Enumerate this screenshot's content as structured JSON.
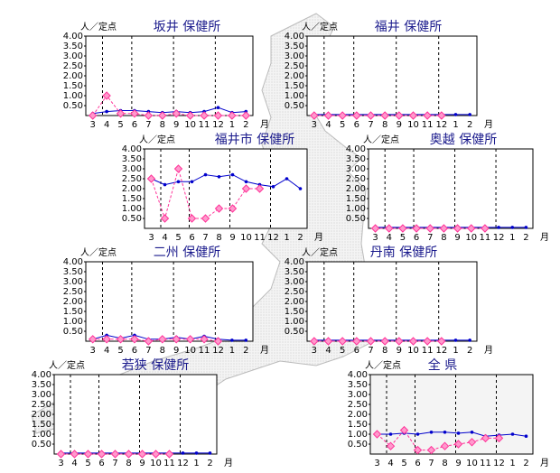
{
  "chart_data": [
    {
      "type": "line",
      "title": "坂井 保健所",
      "y_label": "人／定点",
      "x_unit": "月",
      "categories": [
        "3",
        "4",
        "5",
        "6",
        "7",
        "8",
        "9",
        "10",
        "11",
        "12",
        "1",
        "2"
      ],
      "series": [
        {
          "color": "#0000cc",
          "values": [
            0.1,
            0.2,
            0.25,
            0.25,
            0.2,
            0.15,
            0.2,
            0.15,
            0.2,
            0.4,
            0.15,
            0.2
          ]
        },
        {
          "color": "#ff3399",
          "values": [
            0,
            1.0,
            0.1,
            0.1,
            0,
            0,
            0.1,
            0,
            0,
            0,
            0,
            0
          ]
        }
      ],
      "ylim": [
        0,
        4
      ],
      "yticks": [
        {
          "value": 0.5,
          "label": "0.50"
        },
        {
          "value": 1,
          "label": "1.00"
        },
        {
          "value": 1.5,
          "label": "1.50"
        },
        {
          "value": 2,
          "label": "2.00"
        },
        {
          "value": 2.5,
          "label": "2.50"
        },
        {
          "value": 3,
          "label": "3.00"
        },
        {
          "value": 3.5,
          "label": "3.50"
        },
        {
          "value": 4,
          "label": "4.00"
        }
      ]
    },
    {
      "type": "line",
      "title": "福井 保健所",
      "y_label": "人／定点",
      "x_unit": "月",
      "categories": [
        "3",
        "4",
        "5",
        "6",
        "7",
        "8",
        "9",
        "10",
        "11",
        "12",
        "1",
        "2"
      ],
      "series": [
        {
          "color": "#0000cc",
          "values": [
            0.05,
            0.05,
            0.05,
            0.05,
            0.05,
            0.05,
            0.05,
            0.05,
            0.05,
            0.05,
            0.05,
            0.05
          ]
        },
        {
          "color": "#ff3399",
          "values": [
            0,
            0,
            0,
            0,
            0,
            0,
            0,
            0,
            0,
            0,
            null,
            null
          ]
        }
      ],
      "ylim": [
        0,
        4
      ],
      "yticks": [
        {
          "value": 0.5,
          "label": "0.50"
        },
        {
          "value": 1,
          "label": "1.00"
        },
        {
          "value": 1.5,
          "label": "1.50"
        },
        {
          "value": 2,
          "label": "2.00"
        },
        {
          "value": 2.5,
          "label": "2.50"
        },
        {
          "value": 3,
          "label": "3.00"
        },
        {
          "value": 3.5,
          "label": "3.50"
        },
        {
          "value": 4,
          "label": "4.00"
        }
      ]
    },
    {
      "type": "line",
      "title": "福井市 保健所",
      "y_label": "人／定点",
      "x_unit": "月",
      "categories": [
        "3",
        "4",
        "5",
        "6",
        "7",
        "8",
        "9",
        "10",
        "11",
        "12",
        "1",
        "2"
      ],
      "series": [
        {
          "color": "#0000cc",
          "values": [
            2.5,
            2.2,
            2.35,
            2.35,
            2.7,
            2.6,
            2.7,
            2.35,
            2.2,
            2.1,
            2.5,
            2.0
          ]
        },
        {
          "color": "#ff3399",
          "values": [
            2.5,
            0.5,
            3.0,
            0.5,
            0.5,
            1.0,
            1.0,
            2.0,
            2.0,
            null,
            null,
            null
          ]
        }
      ],
      "ylim": [
        0,
        4
      ],
      "yticks": [
        {
          "value": 0.5,
          "label": "0.50"
        },
        {
          "value": 1,
          "label": "1.00"
        },
        {
          "value": 1.5,
          "label": "1.50"
        },
        {
          "value": 2,
          "label": "2.00"
        },
        {
          "value": 2.5,
          "label": "2.50"
        },
        {
          "value": 3,
          "label": "3.00"
        },
        {
          "value": 3.5,
          "label": "3.50"
        },
        {
          "value": 4,
          "label": "4.00"
        }
      ]
    },
    {
      "type": "line",
      "title": "奥越 保健所",
      "y_label": "人／定点",
      "x_unit": "月",
      "categories": [
        "3",
        "4",
        "5",
        "6",
        "7",
        "8",
        "9",
        "10",
        "11",
        "12",
        "1",
        "2"
      ],
      "series": [
        {
          "color": "#0000cc",
          "values": [
            0.05,
            0.05,
            0.05,
            0.05,
            0.05,
            0.05,
            0.05,
            0.05,
            0.05,
            0.05,
            0.05,
            0.05
          ]
        },
        {
          "color": "#ff3399",
          "values": [
            0,
            0,
            0,
            0,
            0,
            0,
            0,
            0,
            0,
            null,
            null,
            null
          ]
        }
      ],
      "ylim": [
        0,
        4
      ],
      "yticks": [
        {
          "value": 0.5,
          "label": "0.50"
        },
        {
          "value": 1,
          "label": "1.00"
        },
        {
          "value": 1.5,
          "label": "1.50"
        },
        {
          "value": 2,
          "label": "2.00"
        },
        {
          "value": 2.5,
          "label": "2.50"
        },
        {
          "value": 3,
          "label": "3.00"
        },
        {
          "value": 3.5,
          "label": "3.50"
        },
        {
          "value": 4,
          "label": "4.00"
        }
      ]
    },
    {
      "type": "line",
      "title": "二州 保健所",
      "y_label": "人／定点",
      "x_unit": "月",
      "categories": [
        "3",
        "4",
        "5",
        "6",
        "7",
        "8",
        "9",
        "10",
        "11",
        "12",
        "1",
        "2"
      ],
      "series": [
        {
          "color": "#0000cc",
          "values": [
            0.1,
            0.3,
            0.15,
            0.3,
            0.1,
            0.1,
            0.2,
            0.1,
            0.25,
            0.1,
            0.05,
            0.05
          ]
        },
        {
          "color": "#ff3399",
          "values": [
            0.1,
            0.1,
            0.1,
            0.1,
            0,
            0.1,
            0.1,
            0.1,
            0.1,
            0,
            null,
            null
          ]
        }
      ],
      "ylim": [
        0,
        4
      ],
      "yticks": [
        {
          "value": 0.5,
          "label": "0.50"
        },
        {
          "value": 1,
          "label": "1.00"
        },
        {
          "value": 1.5,
          "label": "1.50"
        },
        {
          "value": 2,
          "label": "2.00"
        },
        {
          "value": 2.5,
          "label": "2.50"
        },
        {
          "value": 3,
          "label": "3.00"
        },
        {
          "value": 3.5,
          "label": "3.50"
        },
        {
          "value": 4,
          "label": "4.00"
        }
      ]
    },
    {
      "type": "line",
      "title": "丹南 保健所",
      "y_label": "人／定点",
      "x_unit": "月",
      "categories": [
        "3",
        "4",
        "5",
        "6",
        "7",
        "8",
        "9",
        "10",
        "11",
        "12",
        "1",
        "2"
      ],
      "series": [
        {
          "color": "#0000cc",
          "values": [
            0.05,
            0.05,
            0.05,
            0.05,
            0.05,
            0.05,
            0.05,
            0.05,
            0.05,
            0.05,
            0.05,
            0.05
          ]
        },
        {
          "color": "#ff3399",
          "values": [
            0,
            0,
            0,
            0,
            0,
            0,
            0,
            0,
            0,
            0,
            null,
            null
          ]
        }
      ],
      "ylim": [
        0,
        4
      ],
      "yticks": [
        {
          "value": 0.5,
          "label": "0.50"
        },
        {
          "value": 1,
          "label": "1.00"
        },
        {
          "value": 1.5,
          "label": "1.50"
        },
        {
          "value": 2,
          "label": "2.00"
        },
        {
          "value": 2.5,
          "label": "2.50"
        },
        {
          "value": 3,
          "label": "3.00"
        },
        {
          "value": 3.5,
          "label": "3.50"
        },
        {
          "value": 4,
          "label": "4.00"
        }
      ]
    },
    {
      "type": "line",
      "title": "若狭 保健所",
      "y_label": "人／定点",
      "x_unit": "月",
      "categories": [
        "3",
        "4",
        "5",
        "6",
        "7",
        "8",
        "9",
        "10",
        "11",
        "12",
        "1",
        "2"
      ],
      "series": [
        {
          "color": "#0000cc",
          "values": [
            0.05,
            0.05,
            0.05,
            0.05,
            0.05,
            0.05,
            0.05,
            0.05,
            0.05,
            0.05,
            0.05,
            0.05
          ]
        },
        {
          "color": "#ff3399",
          "values": [
            0,
            0,
            0,
            0,
            0,
            0,
            0,
            0,
            0,
            null,
            null,
            null
          ]
        }
      ],
      "ylim": [
        0,
        4
      ],
      "yticks": [
        {
          "value": 0.5,
          "label": "0.50"
        },
        {
          "value": 1,
          "label": "1.00"
        },
        {
          "value": 1.5,
          "label": "1.50"
        },
        {
          "value": 2,
          "label": "2.00"
        },
        {
          "value": 2.5,
          "label": "2.50"
        },
        {
          "value": 3,
          "label": "3.00"
        },
        {
          "value": 3.5,
          "label": "3.50"
        },
        {
          "value": 4,
          "label": "4.00"
        }
      ]
    },
    {
      "type": "line",
      "title": "全 県",
      "y_label": "人／定点",
      "x_unit": "月",
      "categories": [
        "3",
        "4",
        "5",
        "6",
        "7",
        "8",
        "9",
        "10",
        "11",
        "12",
        "1",
        "2"
      ],
      "series": [
        {
          "color": "#0000cc",
          "values": [
            1.0,
            1.0,
            1.05,
            1.0,
            1.1,
            1.1,
            1.05,
            1.1,
            0.9,
            0.95,
            1.0,
            0.9
          ]
        },
        {
          "color": "#ff3399",
          "values": [
            1.0,
            0.4,
            1.2,
            0.2,
            0.2,
            0.4,
            0.5,
            0.6,
            0.8,
            0.8,
            null,
            null
          ]
        }
      ],
      "ylim": [
        0,
        4
      ],
      "yticks": [
        {
          "value": 0.5,
          "label": "0.50"
        },
        {
          "value": 1,
          "label": "1.00"
        },
        {
          "value": 1.5,
          "label": "1.50"
        },
        {
          "value": 2,
          "label": "2.00"
        },
        {
          "value": 2.5,
          "label": "2.50"
        },
        {
          "value": 3,
          "label": "3.00"
        },
        {
          "value": 3.5,
          "label": "3.50"
        },
        {
          "value": 4,
          "label": "4.00"
        }
      ]
    }
  ]
}
